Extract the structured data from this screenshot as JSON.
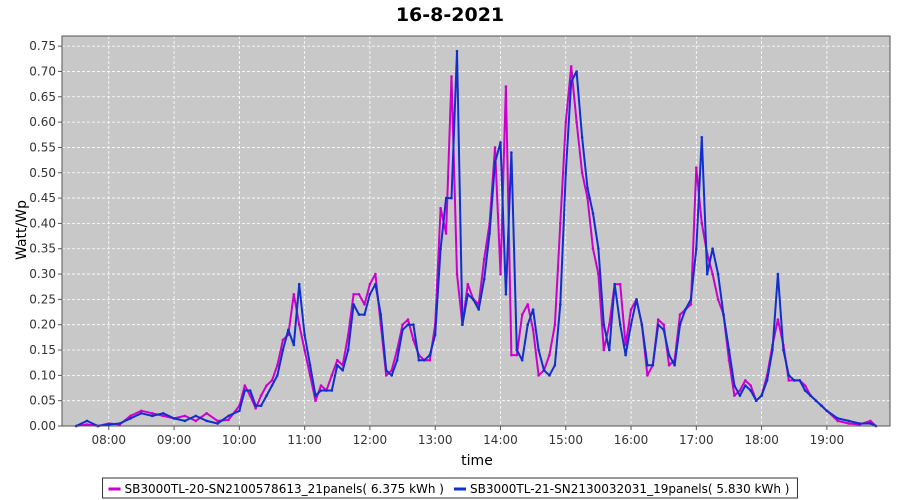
{
  "chart_data": {
    "type": "line",
    "title": "16-8-2021",
    "xlabel": "time",
    "ylabel": "Watt/Wp",
    "x_ticks": [
      "08:00",
      "09:00",
      "10:00",
      "11:00",
      "12:00",
      "13:00",
      "14:00",
      "15:00",
      "16:00",
      "17:00",
      "18:00",
      "19:00"
    ],
    "y_ticks": [
      "0.00",
      "0.05",
      "0.10",
      "0.15",
      "0.20",
      "0.25",
      "0.30",
      "0.35",
      "0.40",
      "0.45",
      "0.50",
      "0.55",
      "0.60",
      "0.65",
      "0.70",
      "0.75"
    ],
    "xlim": [
      "07:17",
      "19:58"
    ],
    "ylim": [
      0,
      0.77
    ],
    "grid": true,
    "background_color": "#c8c8c8",
    "grid_color": "#ffffff",
    "legend_position": "bottom",
    "series": [
      {
        "name": "SB3000TL-20-SN2100578613_21panels( 6.375 kWh )",
        "color": "#cc00cc",
        "x": [
          "07:30",
          "07:40",
          "07:50",
          "08:00",
          "08:10",
          "08:20",
          "08:30",
          "08:40",
          "08:50",
          "09:00",
          "09:10",
          "09:20",
          "09:30",
          "09:40",
          "09:50",
          "10:00",
          "10:05",
          "10:10",
          "10:15",
          "10:20",
          "10:25",
          "10:30",
          "10:35",
          "10:40",
          "10:45",
          "10:50",
          "10:55",
          "11:00",
          "11:05",
          "11:10",
          "11:15",
          "11:20",
          "11:25",
          "11:30",
          "11:35",
          "11:40",
          "11:45",
          "11:50",
          "11:55",
          "12:00",
          "12:05",
          "12:10",
          "12:15",
          "12:20",
          "12:25",
          "12:30",
          "12:35",
          "12:40",
          "12:45",
          "12:50",
          "12:55",
          "13:00",
          "13:05",
          "13:10",
          "13:15",
          "13:20",
          "13:25",
          "13:30",
          "13:35",
          "13:40",
          "13:45",
          "13:50",
          "13:55",
          "14:00",
          "14:05",
          "14:10",
          "14:15",
          "14:20",
          "14:25",
          "14:30",
          "14:35",
          "14:40",
          "14:45",
          "14:50",
          "14:55",
          "15:00",
          "15:05",
          "15:10",
          "15:15",
          "15:20",
          "15:25",
          "15:30",
          "15:35",
          "15:40",
          "15:45",
          "15:50",
          "15:55",
          "16:00",
          "16:05",
          "16:10",
          "16:15",
          "16:20",
          "16:25",
          "16:30",
          "16:35",
          "16:40",
          "16:45",
          "16:50",
          "16:55",
          "17:00",
          "17:05",
          "17:10",
          "17:15",
          "17:20",
          "17:25",
          "17:30",
          "17:35",
          "17:40",
          "17:45",
          "17:50",
          "17:55",
          "18:00",
          "18:05",
          "18:10",
          "18:15",
          "18:20",
          "18:25",
          "18:30",
          "18:35",
          "18:40",
          "18:45",
          "18:50",
          "18:55",
          "19:00",
          "19:10",
          "19:20",
          "19:30",
          "19:40",
          "19:45"
        ],
        "y": [
          0.0,
          0.003,
          0.0,
          0.005,
          0.003,
          0.02,
          0.03,
          0.025,
          0.02,
          0.015,
          0.02,
          0.01,
          0.025,
          0.01,
          0.012,
          0.04,
          0.08,
          0.06,
          0.035,
          0.06,
          0.08,
          0.09,
          0.12,
          0.17,
          0.18,
          0.26,
          0.2,
          0.15,
          0.1,
          0.05,
          0.08,
          0.07,
          0.1,
          0.13,
          0.12,
          0.18,
          0.26,
          0.26,
          0.24,
          0.28,
          0.3,
          0.2,
          0.1,
          0.11,
          0.15,
          0.2,
          0.21,
          0.17,
          0.14,
          0.13,
          0.13,
          0.2,
          0.43,
          0.38,
          0.69,
          0.3,
          0.2,
          0.28,
          0.25,
          0.24,
          0.33,
          0.4,
          0.55,
          0.3,
          0.67,
          0.14,
          0.14,
          0.22,
          0.24,
          0.19,
          0.1,
          0.11,
          0.14,
          0.2,
          0.4,
          0.6,
          0.71,
          0.6,
          0.5,
          0.45,
          0.35,
          0.3,
          0.15,
          0.2,
          0.28,
          0.28,
          0.16,
          0.23,
          0.25,
          0.2,
          0.1,
          0.12,
          0.21,
          0.2,
          0.12,
          0.13,
          0.22,
          0.23,
          0.24,
          0.51,
          0.4,
          0.34,
          0.3,
          0.25,
          0.22,
          0.13,
          0.06,
          0.07,
          0.09,
          0.08,
          0.05,
          0.06,
          0.1,
          0.16,
          0.21,
          0.16,
          0.09,
          0.09,
          0.09,
          0.08,
          0.06,
          0.05,
          0.04,
          0.03,
          0.01,
          0.005,
          0.003,
          0.01,
          0.0
        ]
      },
      {
        "name": "SB3000TL-21-SN2130032031_19panels( 5.830 kWh )",
        "color": "#1030cc",
        "x": [
          "07:30",
          "07:40",
          "07:50",
          "08:00",
          "08:10",
          "08:20",
          "08:30",
          "08:40",
          "08:50",
          "09:00",
          "09:10",
          "09:20",
          "09:30",
          "09:40",
          "09:50",
          "10:00",
          "10:05",
          "10:10",
          "10:15",
          "10:20",
          "10:25",
          "10:30",
          "10:35",
          "10:40",
          "10:45",
          "10:50",
          "10:55",
          "11:00",
          "11:05",
          "11:10",
          "11:15",
          "11:20",
          "11:25",
          "11:30",
          "11:35",
          "11:40",
          "11:45",
          "11:50",
          "11:55",
          "12:00",
          "12:05",
          "12:10",
          "12:15",
          "12:20",
          "12:25",
          "12:30",
          "12:35",
          "12:40",
          "12:45",
          "12:50",
          "12:55",
          "13:00",
          "13:05",
          "13:10",
          "13:15",
          "13:20",
          "13:25",
          "13:30",
          "13:35",
          "13:40",
          "13:45",
          "13:50",
          "13:55",
          "14:00",
          "14:05",
          "14:10",
          "14:15",
          "14:20",
          "14:25",
          "14:30",
          "14:35",
          "14:40",
          "14:45",
          "14:50",
          "14:55",
          "15:00",
          "15:05",
          "15:10",
          "15:15",
          "15:20",
          "15:25",
          "15:30",
          "15:35",
          "15:40",
          "15:45",
          "15:50",
          "15:55",
          "16:00",
          "16:05",
          "16:10",
          "16:15",
          "16:20",
          "16:25",
          "16:30",
          "16:35",
          "16:40",
          "16:45",
          "16:50",
          "16:55",
          "17:00",
          "17:05",
          "17:10",
          "17:15",
          "17:20",
          "17:25",
          "17:30",
          "17:35",
          "17:40",
          "17:45",
          "17:50",
          "17:55",
          "18:00",
          "18:05",
          "18:10",
          "18:15",
          "18:20",
          "18:25",
          "18:30",
          "18:35",
          "18:40",
          "18:45",
          "18:50",
          "18:55",
          "19:00",
          "19:10",
          "19:20",
          "19:30",
          "19:40",
          "19:45"
        ],
        "y": [
          0.0,
          0.01,
          0.0,
          0.003,
          0.005,
          0.015,
          0.025,
          0.02,
          0.025,
          0.015,
          0.01,
          0.02,
          0.01,
          0.005,
          0.02,
          0.03,
          0.07,
          0.07,
          0.04,
          0.04,
          0.06,
          0.08,
          0.1,
          0.15,
          0.19,
          0.16,
          0.28,
          0.18,
          0.12,
          0.06,
          0.07,
          0.07,
          0.07,
          0.12,
          0.11,
          0.15,
          0.24,
          0.22,
          0.22,
          0.26,
          0.28,
          0.22,
          0.11,
          0.1,
          0.13,
          0.19,
          0.2,
          0.2,
          0.13,
          0.13,
          0.14,
          0.18,
          0.35,
          0.45,
          0.45,
          0.74,
          0.2,
          0.26,
          0.25,
          0.23,
          0.29,
          0.38,
          0.52,
          0.56,
          0.26,
          0.54,
          0.15,
          0.13,
          0.2,
          0.23,
          0.15,
          0.11,
          0.1,
          0.12,
          0.24,
          0.5,
          0.68,
          0.7,
          0.57,
          0.47,
          0.42,
          0.35,
          0.2,
          0.15,
          0.28,
          0.2,
          0.14,
          0.2,
          0.25,
          0.2,
          0.12,
          0.12,
          0.2,
          0.19,
          0.14,
          0.12,
          0.2,
          0.23,
          0.25,
          0.35,
          0.57,
          0.3,
          0.35,
          0.3,
          0.22,
          0.15,
          0.08,
          0.06,
          0.08,
          0.07,
          0.05,
          0.06,
          0.09,
          0.15,
          0.3,
          0.15,
          0.1,
          0.09,
          0.09,
          0.07,
          0.06,
          0.05,
          0.04,
          0.03,
          0.015,
          0.01,
          0.005,
          0.005,
          0.0
        ]
      }
    ]
  }
}
